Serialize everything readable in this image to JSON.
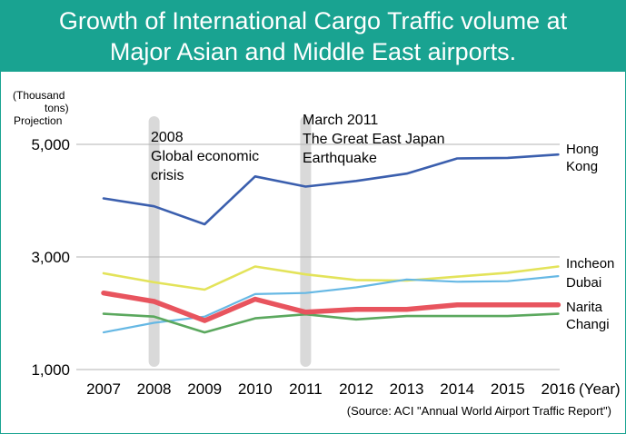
{
  "header": {
    "title_line1": "Growth of International Cargo Traffic volume at",
    "title_line2": "Major Asian and Middle East airports."
  },
  "colors": {
    "title_bg": "#19a391",
    "gridline": "#b3b3b3",
    "band": "#d9d9d9"
  },
  "chart_data": {
    "type": "line",
    "categories": [
      "2007",
      "2008",
      "2009",
      "2010",
      "2011",
      "2012",
      "2013",
      "2014",
      "2015",
      "2016"
    ],
    "xlabel_unit": "(Year)",
    "ylabel_line1": "(Thousand",
    "ylabel_line2": "tons)",
    "ylabel_line3": "Projection",
    "y_ticks": [
      "1,000",
      "3,000",
      "5,000"
    ],
    "y_tick_values": [
      1000,
      3000,
      5000
    ],
    "ylim": [
      1000,
      5000
    ],
    "grid": "horizontal",
    "series": [
      {
        "name": "Hong Kong",
        "name_line1": "Hong",
        "name_line2": "Kong",
        "color": "#3b5fae",
        "width": 2.6,
        "values": [
          4040,
          3900,
          3580,
          4430,
          4250,
          4350,
          4480,
          4750,
          4760,
          4820
        ]
      },
      {
        "name": "Incheon",
        "color": "#e3e35a",
        "width": 2.6,
        "values": [
          2710,
          2550,
          2420,
          2830,
          2690,
          2590,
          2580,
          2650,
          2720,
          2830
        ]
      },
      {
        "name": "Dubai",
        "color": "#66b8e4",
        "width": 2.2,
        "values": [
          1660,
          1830,
          1940,
          2340,
          2360,
          2460,
          2600,
          2560,
          2570,
          2660
        ]
      },
      {
        "name": "Narita",
        "color": "#e8545e",
        "width": 5.5,
        "values": [
          2360,
          2210,
          1870,
          2250,
          2020,
          2070,
          2070,
          2150,
          2150,
          2150
        ]
      },
      {
        "name": "Changi",
        "color": "#5ba85e",
        "width": 2.6,
        "values": [
          1990,
          1940,
          1660,
          1910,
          1980,
          1890,
          1950,
          1950,
          1950,
          1990
        ]
      }
    ],
    "annotations": [
      {
        "year": "2008",
        "lines": [
          "2008",
          "Global economic",
          "crisis"
        ]
      },
      {
        "year": "2011",
        "lines": [
          "March 2011",
          "The Great East Japan",
          "Earthquake"
        ]
      }
    ],
    "source": "(Source: ACI  \"Annual World Airport Traffic Report\")"
  }
}
